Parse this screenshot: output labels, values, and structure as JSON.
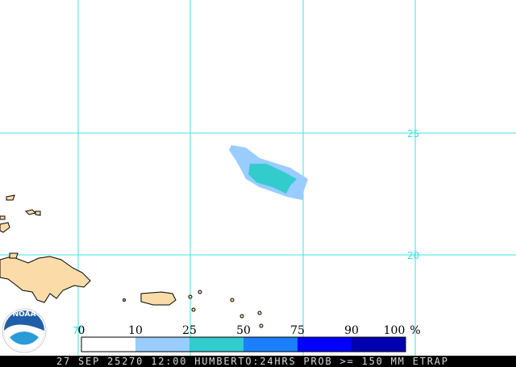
{
  "map": {
    "lat_labels": [
      "25",
      "20"
    ],
    "lon_labels": [
      "70"
    ],
    "legend": {
      "ticks": [
        "0",
        "10",
        "25",
        "50",
        "75",
        "90",
        "100"
      ],
      "unit": "%",
      "colors": [
        "#ffffff",
        "#99ccff",
        "#33cccc",
        "#1a80ff",
        "#0000ff",
        "#0000b0",
        "#00008a"
      ]
    },
    "logo": "NOAA",
    "footer": "27 SEP 25270 12:00 HUMBERTO:24HRS PROB >= 150 MM ETRAP"
  }
}
